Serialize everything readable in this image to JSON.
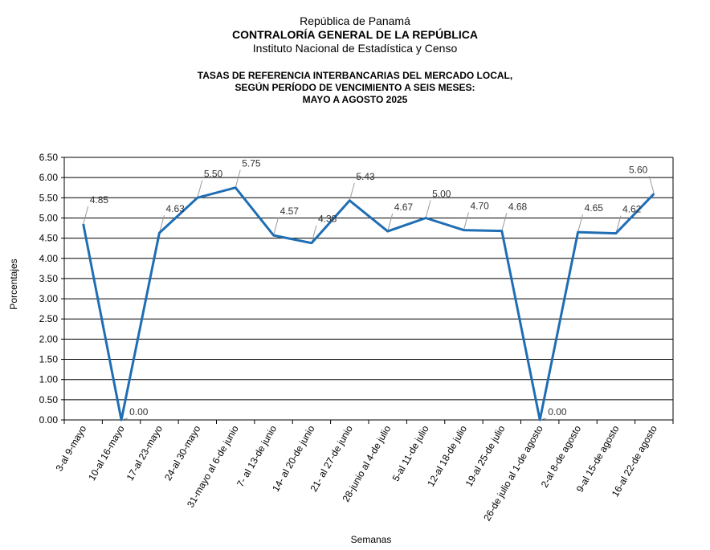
{
  "header": {
    "line1": "República de Panamá",
    "line2": "CONTRALORÍA GENERAL DE LA REPÚBLICA",
    "line3": "Instituto Nacional de Estadística y Censo"
  },
  "chart_data": {
    "type": "line",
    "title_lines": [
      "TASAS DE REFERENCIA INTERBANCARIAS DEL MERCADO LOCAL,",
      "SEGÚN PERÍODO DE VENCIMIENTO A SEIS MESES:",
      "MAYO A AGOSTO 2025"
    ],
    "xlabel": "Semanas",
    "ylabel": "Porcentajes",
    "ylim": [
      0,
      6.5
    ],
    "yticks": [
      "0.00",
      "0.50",
      "1.00",
      "1.50",
      "2.00",
      "2.50",
      "3.00",
      "3.50",
      "4.00",
      "4.50",
      "5.00",
      "5.50",
      "6.00",
      "6.50"
    ],
    "grid": true,
    "line_color": "#1f6eb4",
    "categories": [
      "3-al 9-mayo",
      "10-al 16-mayo",
      "17-al 23-mayo",
      "24-al 30-mayo",
      "31-mayo al 6-de junio",
      "7- al 13-de junio",
      "14- al 20-de junio",
      "21- al 27-de junio",
      "28-junio al 4-de julio",
      "5-al 11-de julio",
      "12-al 18-de julio",
      "19-al 25-de julio",
      "26-de julio al 1-de agosto",
      "2-al 8-de agosto",
      "9-al 15-de agosto",
      "16-al 22-de agosto"
    ],
    "values": [
      4.85,
      0.0,
      4.63,
      5.5,
      5.75,
      4.57,
      4.38,
      5.43,
      4.67,
      5.0,
      4.7,
      4.68,
      0.0,
      4.65,
      4.62,
      5.6
    ],
    "value_labels": [
      "4.85",
      "0.00",
      "4.63",
      "5.50",
      "5.75",
      "4.57",
      "4.38",
      "5.43",
      "4.67",
      "5.00",
      "4.70",
      "4.68",
      "0.00",
      "4.65",
      "4.62",
      "5.60"
    ]
  }
}
